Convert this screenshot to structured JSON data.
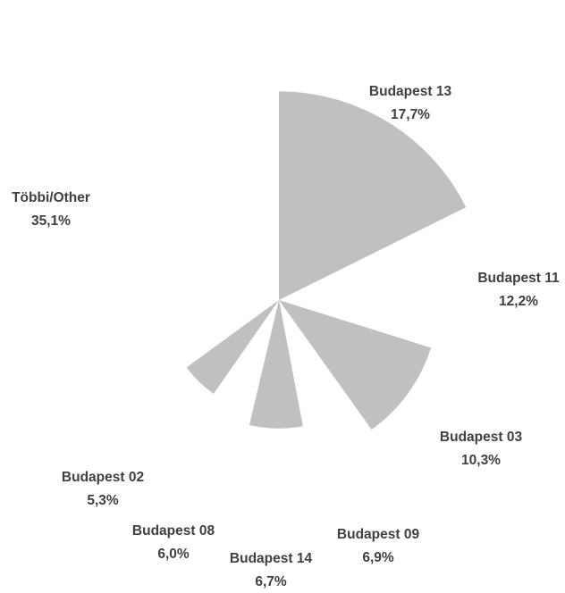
{
  "chart_data": {
    "type": "pie",
    "variant": "polar-area",
    "segments": [
      {
        "name": "Budapest 13",
        "value": 17.7,
        "label": "17,7%",
        "filled": true
      },
      {
        "name": "Budapest 11",
        "value": 12.2,
        "label": "12,2%",
        "filled": false
      },
      {
        "name": "Budapest 03",
        "value": 10.3,
        "label": "10,3%",
        "filled": true
      },
      {
        "name": "Budapest 09",
        "value": 6.9,
        "label": "6,9%",
        "filled": false
      },
      {
        "name": "Budapest 14",
        "value": 6.7,
        "label": "6,7%",
        "filled": true
      },
      {
        "name": "Budapest 08",
        "value": 6.0,
        "label": "6,0%",
        "filled": false
      },
      {
        "name": "Budapest 02",
        "value": 5.3,
        "label": "5,3%",
        "filled": true
      },
      {
        "name": "Többi/Other",
        "value": 35.1,
        "label": "35,1%",
        "filled": false
      }
    ],
    "colors": {
      "fill": "#c0c0c0",
      "label": "#404040",
      "background": "#ffffff"
    },
    "legend": "none",
    "grid": false
  }
}
